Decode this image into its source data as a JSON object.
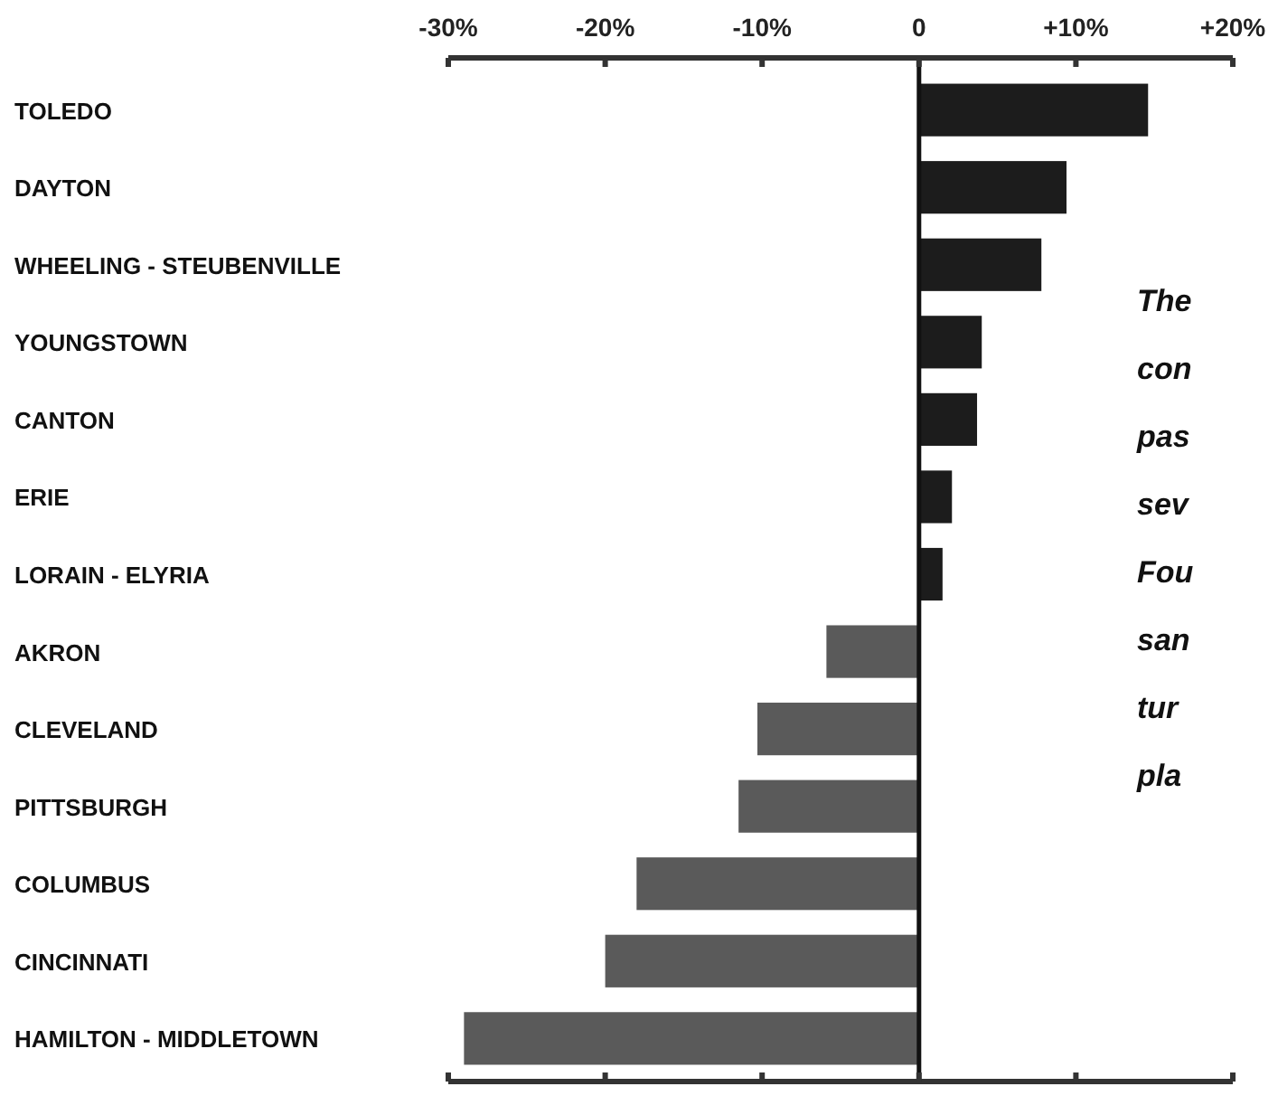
{
  "chart_data": {
    "type": "bar",
    "orientation": "horizontal",
    "categories": [
      "TOLEDO",
      "DAYTON",
      "WHEELING - STEUBENVILLE",
      "YOUNGSTOWN",
      "CANTON",
      "ERIE",
      "LORAIN - ELYRIA",
      "AKRON",
      "CLEVELAND",
      "PITTSBURGH",
      "COLUMBUS",
      "CINCINNATI",
      "HAMILTON - MIDDLETOWN"
    ],
    "values": [
      14.6,
      9.4,
      7.8,
      4.0,
      3.7,
      2.1,
      1.5,
      -5.9,
      -10.3,
      -11.5,
      -18.0,
      -20.0,
      -29.0
    ],
    "colors": [
      "#1c1c1c",
      "#1c1c1c",
      "#1c1c1c",
      "#1c1c1c",
      "#1c1c1c",
      "#1c1c1c",
      "#1c1c1c",
      "#5a5a5a",
      "#5a5a5a",
      "#5a5a5a",
      "#5a5a5a",
      "#5a5a5a",
      "#5a5a5a"
    ],
    "xlim": [
      -30,
      20
    ],
    "xticks": [
      {
        "value": -30,
        "label": "-30%"
      },
      {
        "value": -20,
        "label": "-20%"
      },
      {
        "value": -10,
        "label": "-10%"
      },
      0,
      {
        "value": 10,
        "label": "+10%"
      },
      {
        "value": 20,
        "label": "+20%"
      }
    ],
    "annotations": [
      "The",
      "con",
      "pas",
      "sev",
      "Fou",
      "san",
      "tur",
      "pla"
    ]
  }
}
